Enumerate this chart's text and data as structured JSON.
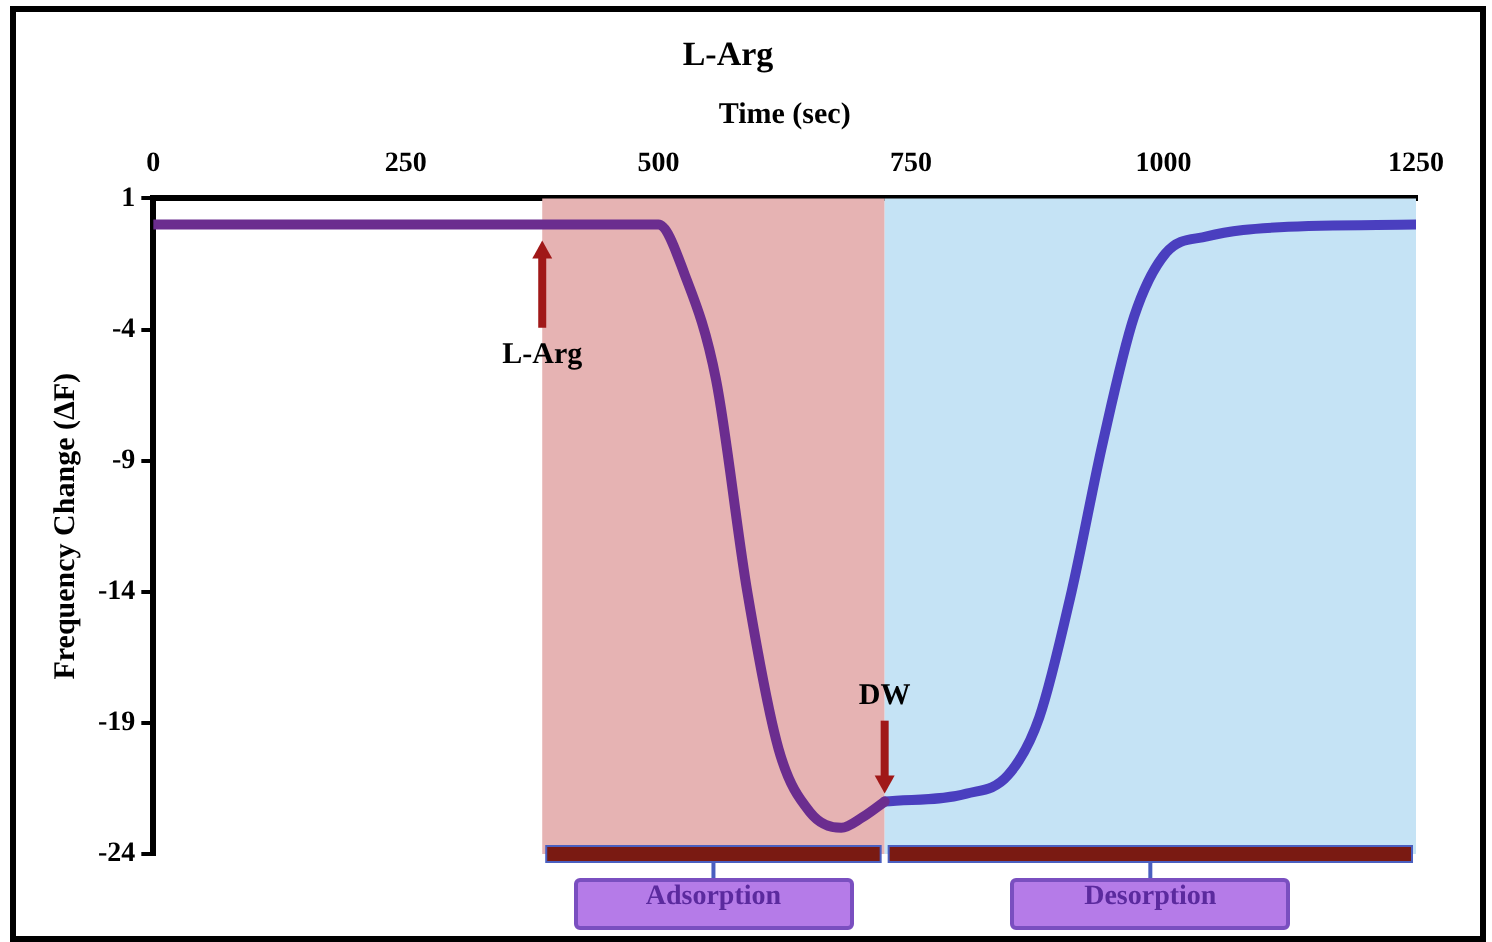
{
  "chart_data": {
    "type": "line",
    "title": "L-Arg",
    "xlabel": "Time (sec)",
    "ylabel": "Frequency Change (ΔF)",
    "xlim": [
      0,
      1250
    ],
    "xticks": [
      0,
      250,
      500,
      750,
      1000,
      1250
    ],
    "ylim": [
      -24,
      1
    ],
    "yticks": [
      1,
      -4,
      -9,
      -14,
      -19,
      -24
    ],
    "series": [
      {
        "color": "#6b2d8f",
        "x": [
          0,
          250,
          500,
          526,
          557,
          588,
          619,
          650,
          681,
          702,
          724
        ],
        "values": [
          0,
          0,
          0,
          -1.9,
          -5.9,
          -14,
          -20,
          -22.4,
          -23,
          -22.6,
          -22
        ]
      },
      {
        "color": "#4a3fbf",
        "x": [
          724,
          805,
          846,
          877,
          909,
          940,
          971,
          1002,
          1043,
          1115,
          1250
        ],
        "values": [
          -22,
          -21.7,
          -21,
          -18.8,
          -14,
          -8.3,
          -3.5,
          -1.1,
          -0.45,
          -0.1,
          0
        ]
      }
    ],
    "bands": [
      {
        "axis": "x",
        "from": 385,
        "to": 724,
        "label": "Adsorption",
        "color": "#e6b3b3"
      },
      {
        "axis": "x",
        "from": 724,
        "to": 1250,
        "label": "Desorption",
        "color": "#c5e3f5"
      }
    ],
    "annotations": [
      {
        "text": "L-Arg",
        "x": 385,
        "y": -5
      },
      {
        "text": "DW",
        "x": 724,
        "y": -18
      }
    ],
    "grid": false,
    "legend": false,
    "marker": "none",
    "line_style": "solid"
  }
}
